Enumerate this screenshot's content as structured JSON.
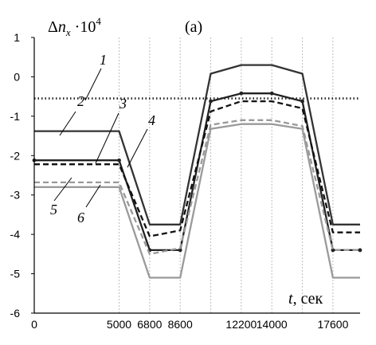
{
  "chart_data": {
    "type": "line",
    "panel_label": "(a)",
    "ylabel": "Δn_x ·10⁴",
    "ylabel_parts": {
      "delta": "Δ",
      "n": "n",
      "sub": "x",
      "times": " ·10",
      "sup": "4"
    },
    "xlabel": "t, сек",
    "xlabel_parts": {
      "var": "t",
      "unit": ", сек"
    },
    "xlim": [
      0,
      19200
    ],
    "ylim": [
      -6,
      1
    ],
    "xticks": [
      0,
      5000,
      6800,
      8600,
      12200,
      14000,
      17600
    ],
    "xtick_labels": [
      "0",
      "5000",
      "6800",
      "8600",
      "12200",
      "14000",
      "17600"
    ],
    "yticks": [
      1,
      0,
      -1,
      -2,
      -3,
      -4,
      -5,
      -6
    ],
    "ytick_labels": [
      "1",
      "0",
      "-1",
      "-2",
      "-3",
      "-4",
      "-5",
      "-6"
    ],
    "vertical_gridlines_at": [
      5000,
      6800,
      8600,
      10400,
      12200,
      14000,
      15800,
      17600
    ],
    "grid": true,
    "series": [
      {
        "name": "1",
        "color": "#222222",
        "dash": "dotted",
        "x": [
          0,
          19200
        ],
        "y": [
          -0.55,
          -0.55
        ]
      },
      {
        "name": "2",
        "color": "#333333",
        "dash": "solid",
        "x": [
          0,
          5000,
          6800,
          8600,
          10400,
          12200,
          14000,
          15800,
          17600,
          19200
        ],
        "y": [
          -1.38,
          -1.38,
          -3.75,
          -3.75,
          0.08,
          0.3,
          0.3,
          0.08,
          -3.75,
          -3.75
        ]
      },
      {
        "name": "3",
        "color": "#222222",
        "dash": "solid",
        "markers": true,
        "x": [
          0,
          5000,
          6800,
          8600,
          10400,
          12200,
          14000,
          15800,
          17600,
          19200
        ],
        "y": [
          -2.12,
          -2.12,
          -4.4,
          -4.4,
          -0.62,
          -0.42,
          -0.42,
          -0.62,
          -4.4,
          -4.4
        ]
      },
      {
        "name": "4",
        "color": "#111111",
        "dash": "dashed",
        "x": [
          0,
          5000,
          6800,
          8600,
          10400,
          12200,
          14000,
          15800,
          17600,
          19200
        ],
        "y": [
          -2.22,
          -2.22,
          -4.05,
          -3.9,
          -0.88,
          -0.62,
          -0.62,
          -0.8,
          -3.95,
          -3.95
        ]
      },
      {
        "name": "5",
        "color": "#999999",
        "dash": "dashed",
        "x": [
          0,
          5000,
          6800,
          8600,
          10400,
          12200,
          14000,
          15800,
          17600,
          19200
        ],
        "y": [
          -2.68,
          -2.68,
          -4.5,
          -4.35,
          -1.22,
          -1.1,
          -1.1,
          -1.25,
          -4.4,
          -4.4
        ]
      },
      {
        "name": "6",
        "color": "#9a9a9a",
        "dash": "solid",
        "x": [
          0,
          5000,
          6800,
          8600,
          10400,
          12200,
          14000,
          15800,
          17600,
          19200
        ],
        "y": [
          -2.8,
          -2.8,
          -5.1,
          -5.1,
          -1.32,
          -1.2,
          -1.2,
          -1.32,
          -5.1,
          -5.1
        ]
      }
    ]
  }
}
